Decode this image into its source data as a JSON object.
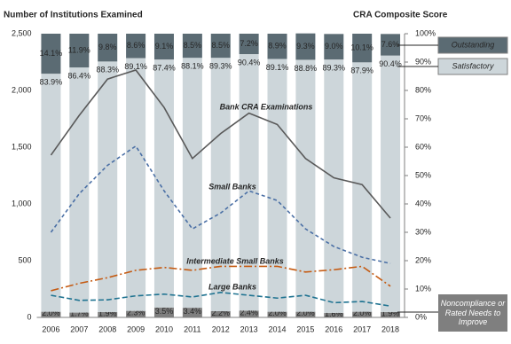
{
  "chart_data": {
    "type": "combo",
    "title": "Number of Institutions Examined",
    "y2_title": "CRA Composite Score",
    "categories": [
      "2006",
      "2007",
      "2008",
      "2009",
      "2010",
      "2011",
      "2012",
      "2013",
      "2014",
      "2015",
      "2016",
      "2017",
      "2018"
    ],
    "ylim": [
      0,
      2500
    ],
    "yticks": [
      0,
      500,
      {
        "value": 1000,
        "label": "1,000"
      },
      {
        "value": 1500,
        "label": "1,500"
      },
      {
        "value": 2000,
        "label": "2,000"
      },
      {
        "value": 2500,
        "label": "2,500"
      }
    ],
    "y2lim": [
      0,
      100
    ],
    "y2ticks": [
      {
        "value": 0,
        "label": "0%"
      },
      {
        "value": 10,
        "label": "10%"
      },
      {
        "value": 20,
        "label": "20%"
      },
      {
        "value": 30,
        "label": "30%"
      },
      {
        "value": 40,
        "label": "40%"
      },
      {
        "value": 50,
        "label": "50%"
      },
      {
        "value": 60,
        "label": "60%"
      },
      {
        "value": 70,
        "label": "70%"
      },
      {
        "value": 80,
        "label": "80%"
      },
      {
        "value": 90,
        "label": "90%"
      },
      {
        "value": 100,
        "label": "100%"
      }
    ],
    "grid": false,
    "series": [
      {
        "name": "Noncompliance or Rated Needs to Improve",
        "type": "bar",
        "axis": "y2",
        "color": "#7f7f7f",
        "values": [
          2.0,
          1.7,
          1.9,
          2.3,
          3.5,
          3.4,
          2.2,
          2.4,
          2.0,
          2.0,
          1.6,
          2.0,
          1.9
        ],
        "value_labels": [
          "2.0%",
          "1.7%",
          "1.9%",
          "2.3%",
          "3.5%",
          "3.4%",
          "2.2%",
          "2.4%",
          "2.0%",
          "2.0%",
          "1.6%",
          "2.0%",
          "1.9%"
        ]
      },
      {
        "name": "Satisfactory",
        "type": "bar",
        "axis": "y2",
        "color": "#cdd6da",
        "values": [
          83.9,
          86.4,
          88.3,
          89.1,
          87.4,
          88.1,
          89.3,
          90.4,
          89.1,
          88.8,
          89.3,
          87.9,
          90.4
        ],
        "value_labels": [
          "83.9%",
          "86.4%",
          "88.3%",
          "89.1%",
          "87.4%",
          "88.1%",
          "89.3%",
          "90.4%",
          "89.1%",
          "88.8%",
          "89.3%",
          "87.9%",
          "90.4%"
        ]
      },
      {
        "name": "Outstanding",
        "type": "bar",
        "axis": "y2",
        "color": "#5b6b73",
        "values": [
          14.1,
          11.9,
          9.8,
          8.6,
          9.1,
          8.5,
          8.5,
          7.2,
          8.9,
          9.3,
          9.0,
          10.1,
          7.6
        ],
        "value_labels": [
          "14.1%",
          "11.9%",
          "9.8%",
          "8.6%",
          "9.1%",
          "8.5%",
          "8.5%",
          "7.2%",
          "8.9%",
          "9.3%",
          "9.0%",
          "10.1%",
          "7.6%"
        ]
      },
      {
        "name": "Bank CRA Examinations",
        "type": "line",
        "axis": "y",
        "color": "#595959",
        "dash": "none",
        "values": [
          1430,
          1780,
          2100,
          2180,
          1850,
          1400,
          1620,
          1800,
          1700,
          1400,
          1230,
          1170,
          875
        ]
      },
      {
        "name": "Small Banks",
        "type": "line",
        "axis": "y",
        "color": "#4a6fa5",
        "dash": "4 3",
        "values": [
          750,
          1090,
          1340,
          1510,
          1115,
          780,
          920,
          1115,
          1030,
          780,
          625,
          530,
          475
        ]
      },
      {
        "name": "Intermediate Small Banks",
        "type": "line",
        "axis": "y",
        "color": "#c55a11",
        "dash": "9 3 2 3",
        "values": [
          235,
          300,
          350,
          415,
          440,
          415,
          450,
          450,
          450,
          400,
          420,
          450,
          275
        ]
      },
      {
        "name": "Large Banks",
        "type": "line",
        "axis": "y",
        "color": "#1f7391",
        "dash": "6 3",
        "values": [
          195,
          150,
          155,
          190,
          205,
          180,
          220,
          195,
          170,
          195,
          130,
          140,
          100
        ]
      }
    ]
  }
}
